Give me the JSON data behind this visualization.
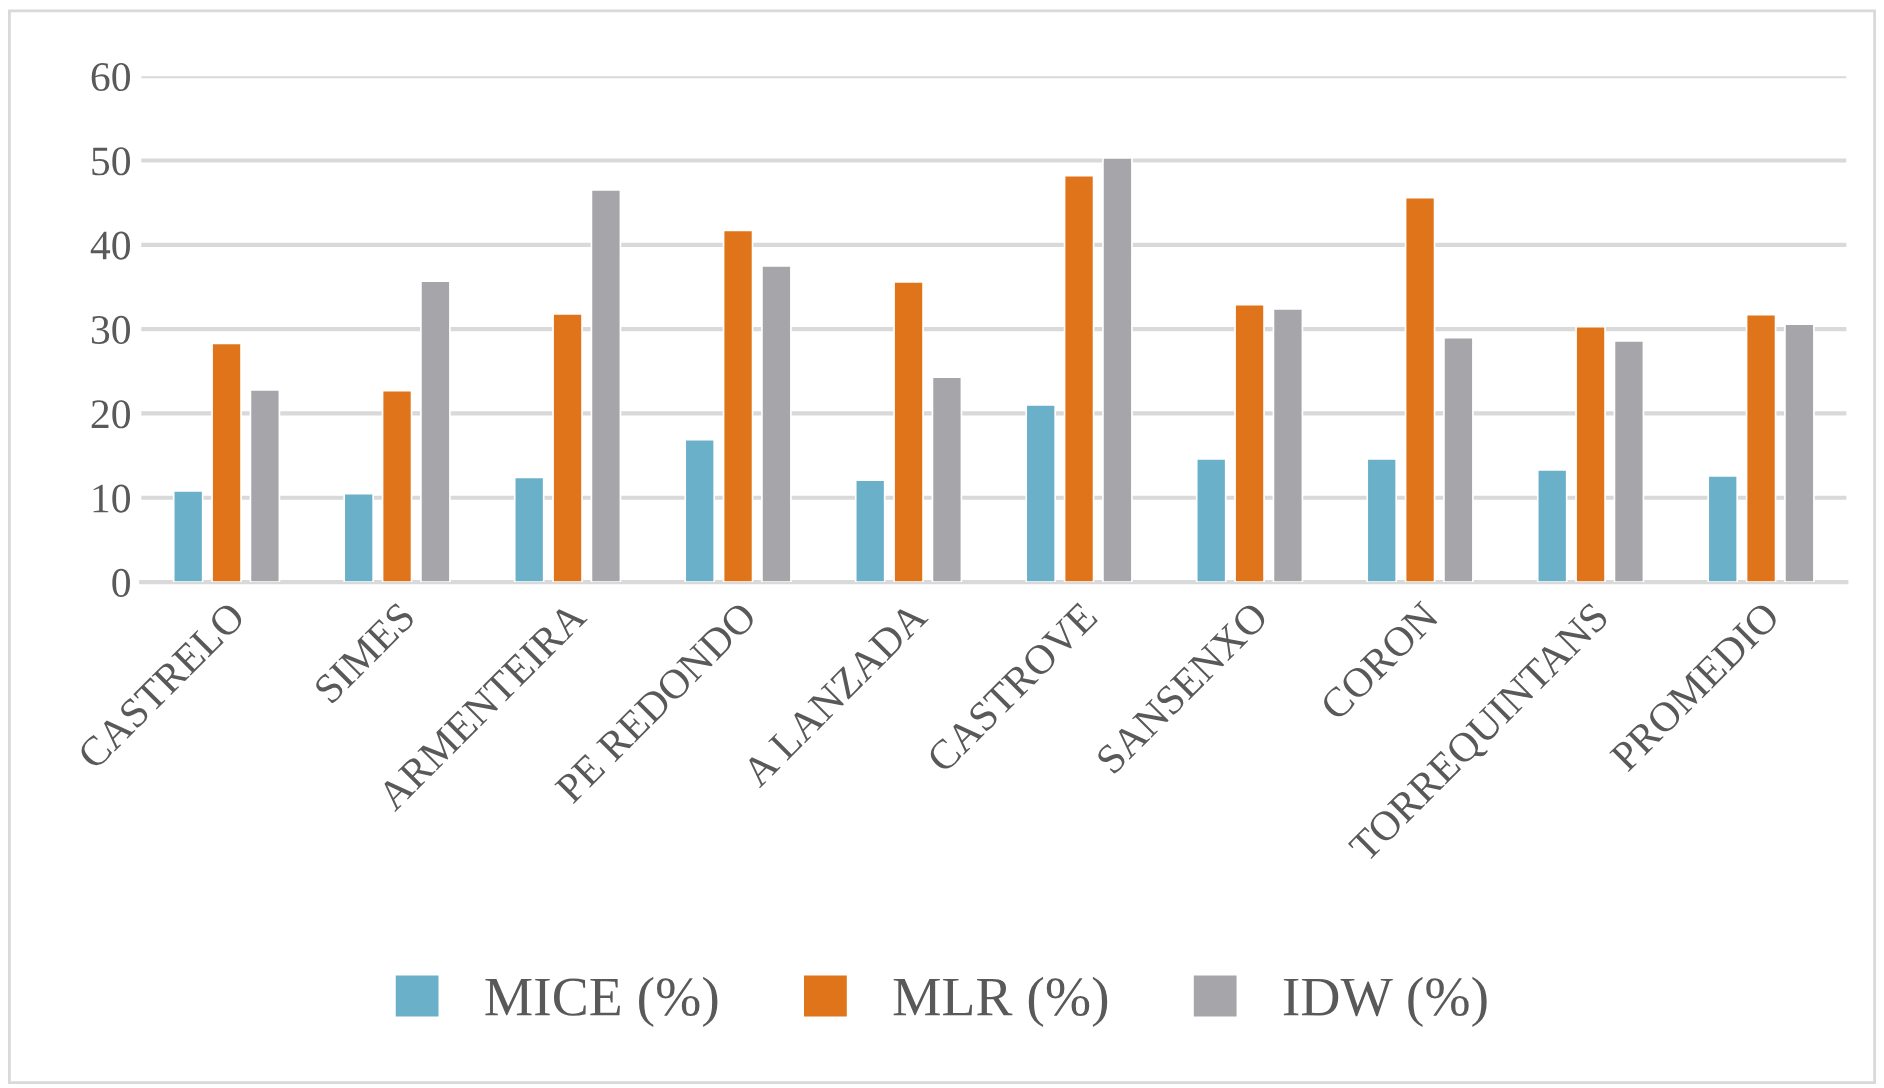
{
  "chart_data": {
    "type": "bar",
    "categories": [
      "CASTRELO",
      "SIMES",
      "ARMENTEIRA",
      "PE REDONDO",
      "A LANZADA",
      "CASTROVE",
      "SANSENXO",
      "CORON",
      "TORREQUINTANS",
      "PROMEDIO"
    ],
    "series": [
      {
        "name": "MICE (%)",
        "color": "#6bb0c9",
        "values": [
          10.8,
          10.5,
          12.4,
          16.9,
          12.1,
          21.0,
          14.6,
          14.6,
          13.3,
          12.6
        ]
      },
      {
        "name": "MLR (%)",
        "color": "#e0741a",
        "values": [
          28.3,
          22.7,
          31.8,
          41.7,
          35.6,
          48.2,
          32.9,
          45.6,
          30.3,
          31.7
        ]
      },
      {
        "name": "IDW (%)",
        "color": "#a6a5aa",
        "values": [
          22.8,
          35.7,
          46.5,
          37.5,
          24.3,
          50.3,
          32.4,
          29.0,
          28.6,
          30.6
        ]
      }
    ],
    "ylim": [
      0,
      60
    ],
    "yticks": [
      0,
      10,
      20,
      30,
      40,
      50,
      60
    ],
    "grid": "y",
    "legend": "bottom"
  }
}
